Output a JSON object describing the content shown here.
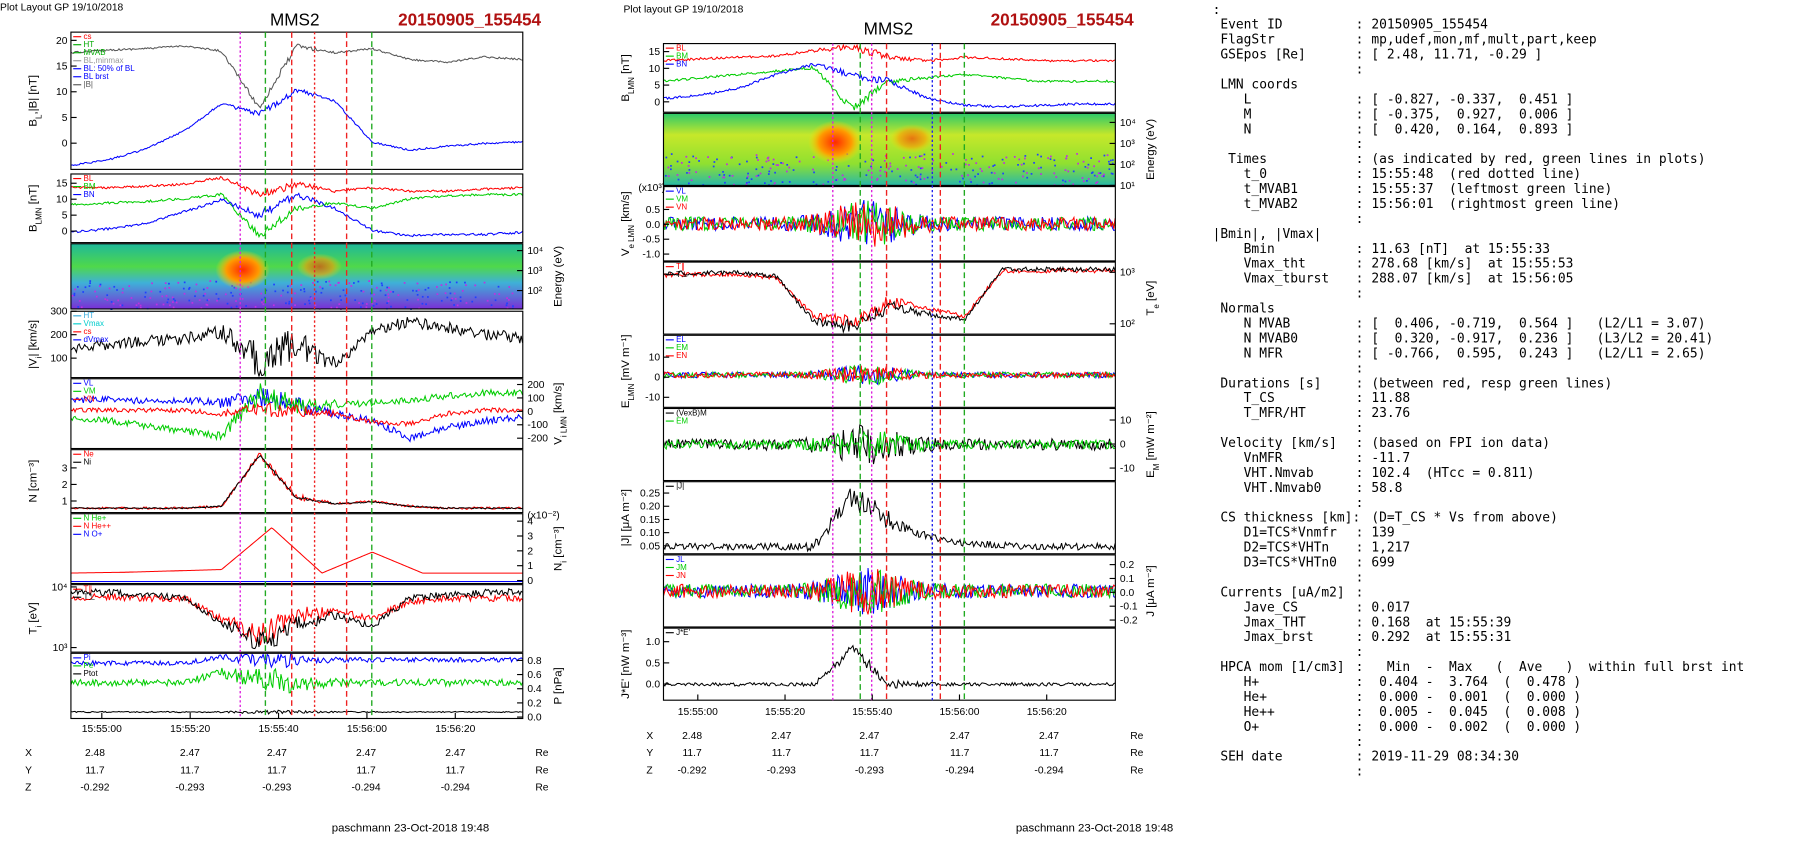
{
  "left_plot": {
    "header": "Plot Layout GP 19/10/2018",
    "spacecraft": "MMS2",
    "event": "20150905_155454",
    "panels": [
      {
        "ylabel": [
          "B",
          "L",
          ",|B| [nT]"
        ],
        "side": "left",
        "ylim": [
          -5.1,
          21.6
        ],
        "yticks": [
          0,
          5,
          10,
          15,
          20
        ],
        "legend": [
          {
            "name": "cs",
            "color": "#ff0000"
          },
          {
            "name": "HT",
            "color": "#00aa00"
          },
          {
            "name": "MVAB",
            "color": "#00aa00"
          },
          {
            "name": "BL,minmax",
            "color": "#999999"
          },
          {
            "name": "BL: 50% of BL",
            "color": "#0000ff"
          },
          {
            "name": "BL brst",
            "color": "#0000ff"
          },
          {
            "name": "|B|",
            "color": "#555555"
          }
        ]
      },
      {
        "ylabel": [
          "B",
          "LMN",
          " [nT]"
        ],
        "side": "left",
        "ylim": [
          -3.6,
          17.9
        ],
        "yticks": [
          0,
          5,
          10,
          15
        ],
        "legend": [
          {
            "name": "BL",
            "color": "#ff0000"
          },
          {
            "name": "BM",
            "color": "#00cc00"
          },
          {
            "name": "BN",
            "color": "#0000ff"
          }
        ]
      },
      {
        "ylabel": [
          "Energy (eV)"
        ],
        "side": "right",
        "log": true,
        "kind": "spectrogram",
        "ylim": [
          12,
          22000
        ],
        "yticks": [
          {
            "value": 100,
            "label": "10²"
          },
          {
            "value": 1000,
            "label": "10³"
          },
          {
            "value": 10000,
            "label": "10⁴"
          }
        ]
      },
      {
        "ylabel": [
          "|V",
          "i",
          "| [km/s]"
        ],
        "side": "left",
        "ylim": [
          17,
          300
        ],
        "yticks": [
          100,
          200,
          300
        ],
        "legend": [
          {
            "name": "HT",
            "color": "#33aadd"
          },
          {
            "name": "Vmax",
            "color": "#00cccc"
          },
          {
            "name": "cs",
            "color": "#ff0000"
          },
          {
            "name": "dVmax",
            "color": "#0000ff"
          }
        ]
      },
      {
        "ylabel": [
          "V",
          "i LMN",
          " [km/s]"
        ],
        "side": "right",
        "ylim": [
          -277,
          243
        ],
        "yticks": [
          -200,
          -100,
          0,
          100,
          200
        ],
        "legend": [
          {
            "name": "VL",
            "color": "#0000ff"
          },
          {
            "name": "VM",
            "color": "#00cc00"
          },
          {
            "name": "VN",
            "color": "#ff0000"
          }
        ]
      },
      {
        "ylabel": [
          "N [cm⁻³]"
        ],
        "side": "left",
        "ylim": [
          0.3,
          4.1
        ],
        "yticks": [
          1,
          2,
          3
        ],
        "legend": [
          {
            "name": "Ne",
            "color": "#ff0000"
          },
          {
            "name": "Ni",
            "color": "#000000"
          }
        ]
      },
      {
        "ylabel": [
          "N",
          "i",
          " [cm⁻³]"
        ],
        "note": "(x10⁻²)",
        "side": "right",
        "ylim": [
          -0.2,
          4.5
        ],
        "yticks": [
          0,
          1,
          2,
          3,
          4
        ],
        "legend": [
          {
            "name": "N He+",
            "color": "#00cc00"
          },
          {
            "name": "N He++",
            "color": "#ff0000"
          },
          {
            "name": "N O+",
            "color": "#0000ff"
          }
        ]
      },
      {
        "ylabel": [
          "T",
          "i",
          " [eV]"
        ],
        "side": "left",
        "log": true,
        "ylim": [
          840,
          10900
        ],
        "yticks": [
          {
            "value": 1000,
            "label": "10³"
          },
          {
            "value": 10000,
            "label": "10⁴"
          }
        ],
        "legend": [
          {
            "name": "T∥",
            "color": "#ff0000"
          },
          {
            "name": "T⊥",
            "color": "#000000"
          }
        ]
      },
      {
        "ylabel": [
          "P [nPa]"
        ],
        "side": "right",
        "ylim": [
          -0.02,
          0.9
        ],
        "yticks": [
          {
            "value": 0,
            "label": "0.0"
          },
          0.2,
          0.4,
          0.6,
          0.8
        ],
        "legend": [
          {
            "name": "Pi",
            "color": "#0000ff"
          },
          {
            "name": "Pe",
            "color": "#00cc00"
          },
          {
            "name": "Ptot",
            "color": "#000000"
          }
        ]
      }
    ],
    "time_ticks": [
      "15:55:00",
      "15:55:20",
      "15:55:40",
      "15:56:00",
      "15:56:20"
    ],
    "coords": [
      {
        "label": "X",
        "values": [
          2.48,
          2.47,
          2.47,
          2.47,
          2.47
        ],
        "unit": "Re"
      },
      {
        "label": "Y",
        "values": [
          11.7,
          11.7,
          11.7,
          11.7,
          11.7
        ],
        "unit": "Re"
      },
      {
        "label": "Z",
        "values": [
          -0.292,
          -0.293,
          -0.293,
          -0.294,
          -0.294
        ],
        "unit": "Re"
      }
    ],
    "footer": "paschmann 23-Oct-2018 19:48"
  },
  "middle_plot": {
    "header": "Plot layout GP 19/10/2018",
    "spacecraft": "MMS2",
    "event": "20150905_155454",
    "panels": [
      {
        "ylabel": [
          "B",
          "LMN",
          " [nT]"
        ],
        "side": "left",
        "ylim": [
          -3.1,
          17.4
        ],
        "yticks": [
          0,
          5,
          10,
          15
        ],
        "legend": [
          {
            "name": "BL",
            "color": "#ff0000"
          },
          {
            "name": "BM",
            "color": "#00cc00"
          },
          {
            "name": "BN",
            "color": "#0000ff"
          }
        ]
      },
      {
        "ylabel": [
          "Energy (eV)"
        ],
        "side": "right",
        "log": true,
        "kind": "spectrogram",
        "ylim": [
          10,
          27000
        ],
        "yticks": [
          {
            "value": 10,
            "label": "10¹"
          },
          {
            "value": 100,
            "label": "10²"
          },
          {
            "value": 1000,
            "label": "10³"
          },
          {
            "value": 10000,
            "label": "10⁴"
          }
        ]
      },
      {
        "ylabel": [
          "V",
          "e LMN",
          " [km/s]"
        ],
        "note": "(x10³)",
        "side": "left",
        "ylim": [
          -1.23,
          1.27
        ],
        "yticks": [
          {
            "value": -1,
            "label": "-1.0"
          },
          -0.5,
          {
            "value": 0,
            "label": "0.0"
          },
          0.5
        ],
        "legend": [
          {
            "name": "VL",
            "color": "#0000ff"
          },
          {
            "name": "VM",
            "color": "#00cc00"
          },
          {
            "name": "VN",
            "color": "#ff0000"
          }
        ]
      },
      {
        "ylabel": [
          "T",
          "e",
          " [eV]"
        ],
        "side": "right",
        "log": true,
        "ylim": [
          63,
          1580
        ],
        "yticks": [
          {
            "value": 100,
            "label": "10²"
          },
          {
            "value": 1000,
            "label": "10³"
          }
        ],
        "legend": [
          {
            "name": "T∥",
            "color": "#ff0000"
          },
          {
            "name": "T⊥",
            "color": "#000000"
          }
        ]
      },
      {
        "ylabel": [
          "E",
          "LMN",
          " [mV m⁻¹]"
        ],
        "side": "left",
        "ylim": [
          -15,
          20.9
        ],
        "yticks": [
          -10,
          0,
          10
        ],
        "legend": [
          {
            "name": "EL",
            "color": "#0000ff"
          },
          {
            "name": "EM",
            "color": "#00cc00"
          },
          {
            "name": "EN",
            "color": "#ff0000"
          }
        ]
      },
      {
        "ylabel": [
          "E",
          "M",
          " [mW m⁻²]"
        ],
        "side": "right",
        "ylim": [
          -15.2,
          14.8
        ],
        "yticks": [
          -10,
          0,
          10
        ],
        "legend": [
          {
            "name": "(VexB)M",
            "color": "#000000"
          },
          {
            "name": "EM",
            "color": "#00cc00"
          }
        ]
      },
      {
        "ylabel": [
          "|J| [μA m⁻²]"
        ],
        "side": "left",
        "ylim": [
          0.02,
          0.293
        ],
        "yticks": [
          0.05,
          {
            "value": 0.1,
            "label": "0.10"
          },
          0.15,
          {
            "value": 0.2,
            "label": "0.20"
          },
          0.25
        ],
        "legend": [
          {
            "name": "|J|",
            "color": "#000000"
          }
        ]
      },
      {
        "ylabel": [
          "J [μA m⁻²]"
        ],
        "side": "right",
        "ylim": [
          -0.25,
          0.27
        ],
        "yticks": [
          -0.2,
          -0.1,
          {
            "value": 0,
            "label": "0.0"
          },
          0.1,
          0.2
        ],
        "legend": [
          {
            "name": "JL",
            "color": "#0000ff"
          },
          {
            "name": "JM",
            "color": "#00cc00"
          },
          {
            "name": "JN",
            "color": "#ff0000"
          }
        ]
      },
      {
        "ylabel": [
          "J*E' [nW m⁻³]"
        ],
        "side": "left",
        "ylim": [
          -0.38,
          1.32
        ],
        "yticks": [
          {
            "value": 0,
            "label": "0.0"
          },
          0.5,
          {
            "value": 1,
            "label": "1.0"
          }
        ],
        "legend": [
          {
            "name": "J*E'",
            "color": "#000000"
          }
        ]
      }
    ],
    "time_ticks": [
      "15:55:00",
      "15:55:20",
      "15:55:40",
      "15:56:00",
      "15:56:20"
    ],
    "coords": [
      {
        "label": "X",
        "values": [
          2.48,
          2.47,
          2.47,
          2.47,
          2.47
        ],
        "unit": "Re"
      },
      {
        "label": "Y",
        "values": [
          11.7,
          11.7,
          11.7,
          11.7,
          11.7
        ],
        "unit": "Re"
      },
      {
        "label": "Z",
        "values": [
          -0.292,
          -0.293,
          -0.293,
          -0.294,
          -0.294
        ],
        "unit": "Re"
      }
    ],
    "footer": "paschmann 23-Oct-2018 19:48"
  },
  "summary": {
    "lines": [
      {
        "key": ":"
      },
      {
        "key": " Event ID",
        "sep": ":",
        "value": " 20150905_155454"
      },
      {
        "key": " FlagStr",
        "sep": ":",
        "value": " mp,udef,mon,mf,mult,part,keep"
      },
      {
        "key": " GSEpos [Re]",
        "sep": ":",
        "value": " [ 2.48, 11.71, -0.29 ]"
      },
      {
        "sep": ":"
      },
      {
        "key": " LMN coords"
      },
      {
        "key": "    L",
        "sep": ":",
        "value": " [ -0.827, -0.337,  0.451 ]"
      },
      {
        "key": "    M",
        "sep": ":",
        "value": " [ -0.375,  0.927,  0.006 ]"
      },
      {
        "key": "    N",
        "sep": ":",
        "value": " [  0.420,  0.164,  0.893 ]"
      },
      {
        "sep": ":"
      },
      {
        "key": "  Times",
        "sep": ":",
        "value": " (as indicated by red, green lines in plots)"
      },
      {
        "key": "    t_0",
        "sep": ":",
        "value": " 15:55:48  (red dotted line)"
      },
      {
        "key": "    t_MVAB1",
        "sep": ":",
        "value": " 15:55:37  (leftmost green line)"
      },
      {
        "key": "    t_MVAB2",
        "sep": ":",
        "value": " 15:56:01  (rightmost green line)"
      },
      {
        "sep": ":"
      },
      {
        "key": "|Bmin|, |Vmax|"
      },
      {
        "key": "    Bmin",
        "sep": ":",
        "value": " 11.63 [nT]  at 15:55:33"
      },
      {
        "key": "    Vmax_tht",
        "sep": ":",
        "value": " 278.68 [km/s]  at 15:55:53"
      },
      {
        "key": "    Vmax_tburst",
        "sep": ":",
        "value": " 288.07 [km/s]  at 15:56:05"
      },
      {
        "sep": ":"
      },
      {
        "key": " Normals"
      },
      {
        "key": "    N MVAB",
        "sep": ":",
        "value": " [  0.406, -0.719,  0.564 ]   (L2/L1 = 3.07)"
      },
      {
        "key": "    N MVAB0",
        "sep": ":",
        "value": " [  0.320, -0.917,  0.236 ]   (L3/L2 = 20.41)"
      },
      {
        "key": "    N MFR",
        "sep": ":",
        "value": " [ -0.766,  0.595,  0.243 ]   (L2/L1 = 2.65)"
      },
      {
        "sep": ":"
      },
      {
        "key": " Durations [s]",
        "sep": ":",
        "value": " (between red, resp green lines)"
      },
      {
        "key": "    T_CS",
        "sep": ":",
        "value": " 11.88"
      },
      {
        "key": "    T_MFR/HT",
        "sep": ":",
        "value": " 23.76"
      },
      {
        "sep": ":"
      },
      {
        "key": " Velocity [km/s]",
        "sep": ":",
        "value": " (based on FPI ion data)"
      },
      {
        "key": "    VnMFR",
        "sep": ":",
        "value": " -11.7"
      },
      {
        "key": "    VHT.Nmvab",
        "sep": ":",
        "value": " 102.4  (HTcc = 0.811)"
      },
      {
        "key": "    VHT.Nmvab0",
        "sep": ":",
        "value": " 58.8"
      },
      {
        "sep": ":"
      },
      {
        "key": " CS thickness [km]:",
        "value": " (D=T_CS * Vs from above)"
      },
      {
        "key": "    D1=TCS*Vnmfr",
        "sep": ":",
        "value": " 139"
      },
      {
        "key": "    D2=TCS*VHTn",
        "sep": ":",
        "value": " 1,217"
      },
      {
        "key": "    D3=TCS*VHTn0",
        "sep": ":",
        "value": " 699"
      },
      {
        "sep": ":"
      },
      {
        "key": " Currents [uA/m2]",
        "sep": ":"
      },
      {
        "key": "    Jave_CS",
        "sep": ":",
        "value": " 0.017"
      },
      {
        "key": "    Jmax_THT",
        "sep": ":",
        "value": " 0.168  at 15:55:39"
      },
      {
        "key": "    Jmax_brst",
        "sep": ":",
        "value": " 0.292  at 15:55:31"
      },
      {
        "sep": ":"
      },
      {
        "key": " HPCA mom [1/cm3]",
        "sep": ":",
        "value": "   Min  -  Max   (  Ave   )  within full brst int"
      },
      {
        "key": "    H+",
        "sep": ":",
        "value": "  0.404 -  3.764  (  0.478 )"
      },
      {
        "key": "    He+",
        "sep": ":",
        "value": "  0.000 -  0.001  (  0.000 )"
      },
      {
        "key": "    He++",
        "sep": ":",
        "value": "  0.005 -  0.045  (  0.008 )"
      },
      {
        "key": "    O+",
        "sep": ":",
        "value": "  0.000 -  0.002  (  0.000 )"
      },
      {
        "sep": ":"
      },
      {
        "key": " SEH date",
        "sep": ":",
        "value": " 2019-11-29 08:34:30"
      },
      {
        "sep": ":"
      }
    ]
  }
}
